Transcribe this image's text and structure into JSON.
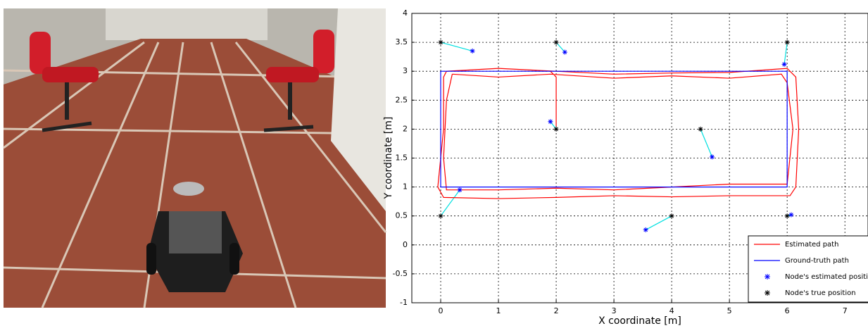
{
  "chart_data": {
    "type": "line",
    "xlabel": "X coordinate [m]",
    "ylabel": "Y coordinate [m]",
    "xlim": [
      -0.5,
      7.4
    ],
    "ylim": [
      -1,
      4
    ],
    "xticks": [
      0,
      1,
      2,
      3,
      4,
      5,
      6,
      7
    ],
    "yticks": [
      -1,
      -0.5,
      0,
      0.5,
      1,
      1.5,
      2,
      2.5,
      3,
      3.5,
      4
    ],
    "grid": true,
    "legend": "lower right",
    "series": [
      {
        "name": "Estimated path",
        "color": "#ff0000",
        "kind": "line",
        "x": [
          0.1,
          1,
          2,
          3,
          4,
          5,
          6,
          6.15,
          6.2,
          6.15,
          6.05,
          5,
          4,
          3,
          2,
          1,
          0.05,
          -0.05,
          0.05,
          0.05,
          0.1,
          null,
          0.2,
          1,
          1.9,
          3,
          4,
          5,
          5.9,
          6,
          6.1,
          6,
          5,
          4,
          3,
          2,
          1,
          0.1,
          0.05,
          0.1,
          0.2,
          null,
          1.9,
          2,
          2
        ],
        "values": [
          3.0,
          3.05,
          3.0,
          2.95,
          2.97,
          2.98,
          3.05,
          2.9,
          2,
          1.0,
          0.85,
          0.85,
          0.83,
          0.85,
          0.82,
          0.8,
          0.82,
          1,
          2,
          2.9,
          3.0,
          null,
          2.95,
          2.9,
          2.95,
          2.88,
          2.92,
          2.88,
          2.95,
          2.8,
          2,
          1.05,
          1.05,
          1.0,
          0.95,
          0.98,
          0.95,
          0.95,
          1.5,
          2.5,
          2.95,
          null,
          3.0,
          2.9,
          2.05
        ]
      },
      {
        "name": "Ground-truth path",
        "color": "#0000ff",
        "kind": "line",
        "x": [
          0,
          6,
          6,
          0,
          0
        ],
        "values": [
          3,
          3,
          1,
          1,
          3
        ]
      },
      {
        "name": "Node's estimated position",
        "color": "#0000ff",
        "kind": "scatter",
        "x": [
          0.55,
          2.15,
          5.95,
          1.9,
          4.7,
          0.33,
          3.55,
          6.07
        ],
        "values": [
          3.35,
          3.33,
          3.12,
          2.13,
          1.52,
          0.95,
          0.26,
          0.52
        ]
      },
      {
        "name": "Node's true position",
        "color": "#000000",
        "kind": "scatter",
        "x": [
          0,
          2,
          6,
          2,
          4.5,
          0,
          4,
          6
        ],
        "values": [
          3.5,
          3.5,
          3.5,
          2,
          2,
          0.5,
          0.5,
          0.5
        ]
      }
    ],
    "link_color": "#00e0e0"
  }
}
